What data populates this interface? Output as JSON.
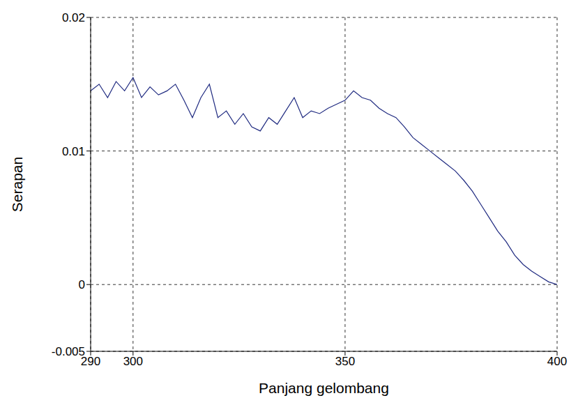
{
  "chart_data": {
    "type": "line",
    "x_label": "Panjang gelombang",
    "y_label": "Serapan",
    "x": [
      290,
      292,
      294,
      296,
      298,
      300,
      302,
      304,
      306,
      308,
      310,
      312,
      314,
      316,
      318,
      320,
      322,
      324,
      326,
      328,
      330,
      332,
      334,
      336,
      338,
      340,
      342,
      344,
      346,
      348,
      350,
      352,
      354,
      356,
      358,
      360,
      362,
      364,
      366,
      368,
      370,
      372,
      374,
      376,
      378,
      380,
      382,
      384,
      386,
      388,
      390,
      392,
      394,
      396,
      398,
      400
    ],
    "values": [
      0.0145,
      0.015,
      0.014,
      0.0152,
      0.0145,
      0.0155,
      0.014,
      0.0148,
      0.0142,
      0.0145,
      0.015,
      0.0138,
      0.0125,
      0.014,
      0.015,
      0.0125,
      0.013,
      0.012,
      0.0128,
      0.0118,
      0.0115,
      0.0125,
      0.012,
      0.013,
      0.014,
      0.0125,
      0.013,
      0.0128,
      0.0132,
      0.0135,
      0.0138,
      0.0145,
      0.014,
      0.0138,
      0.0132,
      0.0128,
      0.0125,
      0.0118,
      0.011,
      0.0105,
      0.01,
      0.0095,
      0.009,
      0.0085,
      0.0078,
      0.007,
      0.006,
      0.005,
      0.004,
      0.0032,
      0.0022,
      0.0015,
      0.001,
      0.0006,
      0.0002,
      0
    ],
    "color": "#1f2a80",
    "xlim": [
      290,
      400
    ],
    "xticks": [
      290,
      300,
      350,
      400
    ],
    "ylim": [
      -0.005,
      0.02
    ],
    "yticks": [
      -0.005,
      0,
      0.01,
      0.02
    ],
    "grid": true
  }
}
